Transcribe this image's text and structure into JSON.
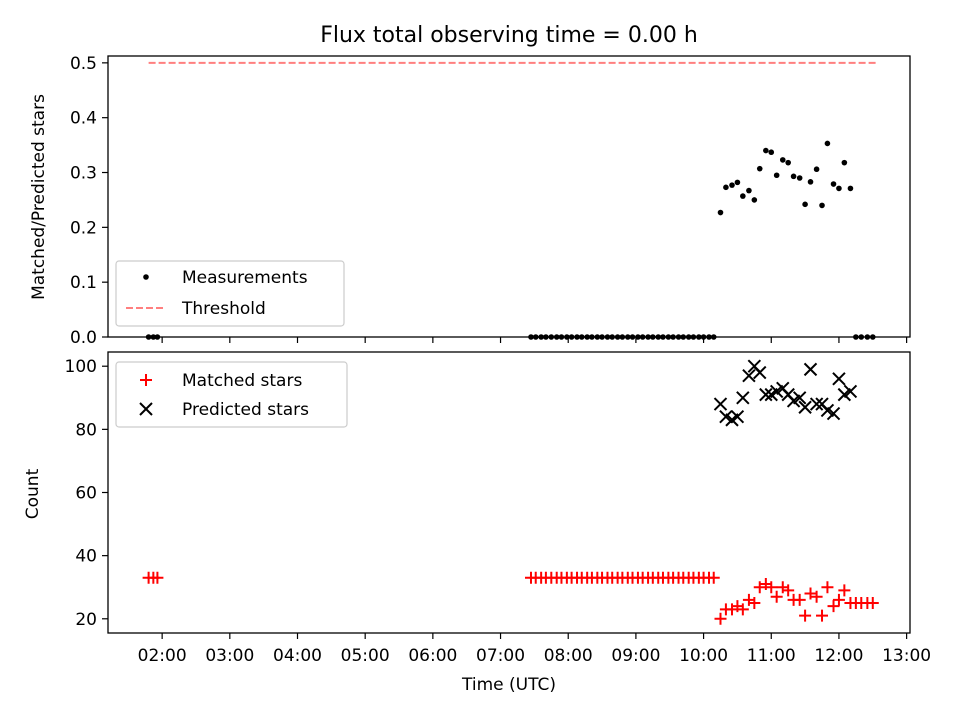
{
  "chart_data": [
    {
      "type": "scatter",
      "title": "Flux total observing time = 0.00 h",
      "ylabel": "Matched/Predicted stars",
      "xlabel": "",
      "xlim": [
        1.2,
        13.05
      ],
      "ylim": [
        0,
        0.5125
      ],
      "yticks": [
        0.0,
        0.1,
        0.2,
        0.3,
        0.4,
        0.5
      ],
      "legend": {
        "position": "lower-left",
        "entries": [
          "Measurements",
          "Threshold"
        ]
      },
      "threshold": {
        "name": "Threshold",
        "y": 0.5,
        "x_range": [
          1.8,
          12.55
        ],
        "color": "#ff7f7f"
      },
      "series": [
        {
          "name": "Measurements",
          "marker": "dot",
          "color": "#000000",
          "x": [
            1.8,
            1.87,
            1.93,
            7.45,
            7.52,
            7.6,
            7.67,
            7.75,
            7.83,
            7.9,
            7.98,
            8.05,
            8.13,
            8.2,
            8.28,
            8.35,
            8.43,
            8.5,
            8.58,
            8.65,
            8.73,
            8.8,
            8.88,
            8.95,
            9.03,
            9.1,
            9.18,
            9.25,
            9.33,
            9.4,
            9.48,
            9.55,
            9.63,
            9.7,
            9.78,
            9.85,
            9.93,
            10.0,
            10.08,
            10.15,
            10.25,
            10.33,
            10.42,
            10.5,
            10.58,
            10.67,
            10.75,
            10.83,
            10.92,
            11.0,
            11.08,
            11.17,
            11.25,
            11.33,
            11.42,
            11.5,
            11.58,
            11.67,
            11.75,
            11.83,
            11.92,
            12.0,
            12.08,
            12.17,
            12.25,
            12.33,
            12.42,
            12.5
          ],
          "y": [
            0.0,
            0.0,
            0.0,
            0.0,
            0.0,
            0.0,
            0.0,
            0.0,
            0.0,
            0.0,
            0.0,
            0.0,
            0.0,
            0.0,
            0.0,
            0.0,
            0.0,
            0.0,
            0.0,
            0.0,
            0.0,
            0.0,
            0.0,
            0.0,
            0.0,
            0.0,
            0.0,
            0.0,
            0.0,
            0.0,
            0.0,
            0.0,
            0.0,
            0.0,
            0.0,
            0.0,
            0.0,
            0.0,
            0.0,
            0.0,
            0.227,
            0.273,
            0.277,
            0.282,
            0.257,
            0.267,
            0.25,
            0.307,
            0.34,
            0.337,
            0.295,
            0.323,
            0.318,
            0.293,
            0.29,
            0.242,
            0.283,
            0.306,
            0.24,
            0.353,
            0.279,
            0.271,
            0.318,
            0.271,
            0.0,
            0.0,
            0.0,
            0.0
          ]
        }
      ]
    },
    {
      "type": "scatter",
      "xlabel": "Time (UTC)",
      "ylabel": "Count",
      "xlim": [
        1.2,
        13.05
      ],
      "ylim": [
        15.5,
        104.5
      ],
      "xticks": [
        "02:00",
        "03:00",
        "04:00",
        "05:00",
        "06:00",
        "07:00",
        "08:00",
        "09:00",
        "10:00",
        "11:00",
        "12:00",
        "13:00"
      ],
      "yticks": [
        20,
        40,
        60,
        80,
        100
      ],
      "legend": {
        "position": "top-left",
        "entries": [
          "Matched stars",
          "Predicted stars"
        ]
      },
      "series": [
        {
          "name": "Matched stars",
          "marker": "plus",
          "color": "#ff0000",
          "x": [
            1.8,
            1.87,
            1.93,
            7.45,
            7.52,
            7.6,
            7.67,
            7.75,
            7.83,
            7.9,
            7.98,
            8.05,
            8.13,
            8.2,
            8.28,
            8.35,
            8.43,
            8.5,
            8.58,
            8.65,
            8.73,
            8.8,
            8.88,
            8.95,
            9.03,
            9.1,
            9.18,
            9.25,
            9.33,
            9.4,
            9.48,
            9.55,
            9.63,
            9.7,
            9.78,
            9.85,
            9.93,
            10.0,
            10.08,
            10.15,
            10.25,
            10.33,
            10.42,
            10.5,
            10.58,
            10.67,
            10.75,
            10.83,
            10.92,
            11.0,
            11.08,
            11.17,
            11.25,
            11.33,
            11.42,
            11.5,
            11.58,
            11.67,
            11.75,
            11.83,
            11.92,
            12.0,
            12.08,
            12.17,
            12.25,
            12.33,
            12.42,
            12.5
          ],
          "y": [
            33,
            33,
            33,
            33,
            33,
            33,
            33,
            33,
            33,
            33,
            33,
            33,
            33,
            33,
            33,
            33,
            33,
            33,
            33,
            33,
            33,
            33,
            33,
            33,
            33,
            33,
            33,
            33,
            33,
            33,
            33,
            33,
            33,
            33,
            33,
            33,
            33,
            33,
            33,
            33,
            20,
            23,
            23,
            24,
            23,
            26,
            25,
            30,
            31,
            30,
            27,
            30,
            29,
            26,
            26,
            21,
            28,
            27,
            21,
            30,
            24,
            26,
            29,
            25,
            25,
            25,
            25,
            25
          ]
        },
        {
          "name": "Predicted stars",
          "marker": "x",
          "color": "#000000",
          "x": [
            10.25,
            10.33,
            10.42,
            10.5,
            10.58,
            10.67,
            10.75,
            10.83,
            10.92,
            11.0,
            11.08,
            11.17,
            11.25,
            11.33,
            11.42,
            11.5,
            11.58,
            11.67,
            11.75,
            11.83,
            11.92,
            12.0,
            12.08,
            12.17
          ],
          "y": [
            88,
            84,
            83,
            84,
            90,
            97,
            100,
            98,
            91,
            91,
            92,
            93,
            91,
            89,
            90,
            87,
            99,
            88,
            88,
            86,
            85,
            96,
            91,
            92
          ]
        }
      ]
    }
  ]
}
